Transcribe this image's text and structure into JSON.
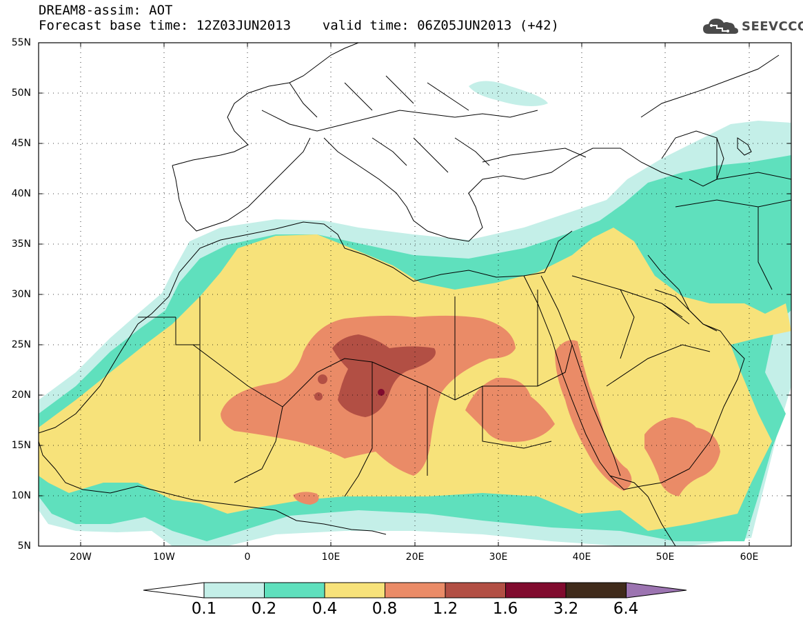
{
  "header": {
    "title_line1": "DREAM8-assim: AOT",
    "title_line2": "Forecast base time: 12Z03JUN2013    valid time: 06Z05JUN2013 (+42)"
  },
  "logo": {
    "text": "SEEVCCC",
    "icon": "cloud-icon",
    "color": "#4a4a4a"
  },
  "map": {
    "projection": "lat-lon",
    "lon_range": [
      -25,
      65
    ],
    "lat_range": [
      5,
      55
    ],
    "lat_ticks": [
      "55N",
      "50N",
      "45N",
      "40N",
      "35N",
      "30N",
      "25N",
      "20N",
      "15N",
      "10N",
      "5N"
    ],
    "lon_ticks": [
      "20W",
      "10W",
      "0",
      "10E",
      "20E",
      "30E",
      "40E",
      "50E",
      "60E"
    ],
    "variable": "Aerosol Optical Thickness (AOT)",
    "grid": "dotted"
  },
  "colorbar": {
    "levels": [
      "0.1",
      "0.2",
      "0.4",
      "0.8",
      "1.2",
      "1.6",
      "3.2",
      "6.4"
    ],
    "colors": [
      "#ffffff",
      "#c4efe8",
      "#5fe0bd",
      "#f7e27a",
      "#ea8b67",
      "#b24f44",
      "#800b2e",
      "#402b1b",
      "#9c74b1"
    ]
  }
}
